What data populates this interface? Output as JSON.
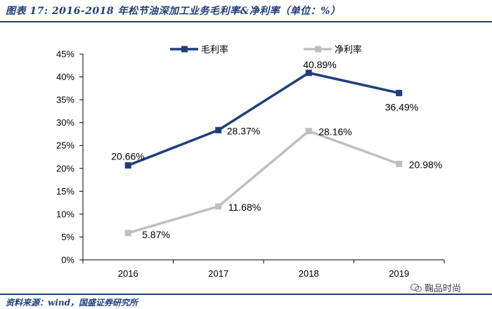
{
  "header": {
    "title": "图表 17:   2016-2018 年松节油深加工业务毛利率&净利率（单位：%）"
  },
  "footer": {
    "source": "资料来源：wind，国盛证券研究所"
  },
  "watermark": {
    "text": "鞠品时尚"
  },
  "chart_data": {
    "type": "line",
    "title": "2016-2018 年松节油深加工业务毛利率&净利率（单位：%）",
    "xlabel": "",
    "ylabel": "",
    "categories": [
      "2016",
      "2017",
      "2018",
      "2019"
    ],
    "ylim": [
      0,
      45
    ],
    "yticks": [
      "0%",
      "5%",
      "10%",
      "15%",
      "20%",
      "25%",
      "30%",
      "35%",
      "40%",
      "45%"
    ],
    "ytick_values": [
      0,
      5,
      10,
      15,
      20,
      25,
      30,
      35,
      40,
      45
    ],
    "legend_position": "top",
    "series": [
      {
        "name": "毛利率",
        "color": "#1f3f7a",
        "values": [
          20.66,
          28.37,
          40.89,
          36.49
        ],
        "labels": [
          "20.66%",
          "28.37%",
          "40.89%",
          "36.49%"
        ]
      },
      {
        "name": "净利率",
        "color": "#bfbfbf",
        "values": [
          5.87,
          11.68,
          28.16,
          20.98
        ],
        "labels": [
          "5.87%",
          "11.68%",
          "28.16%",
          "20.98%"
        ]
      }
    ]
  }
}
